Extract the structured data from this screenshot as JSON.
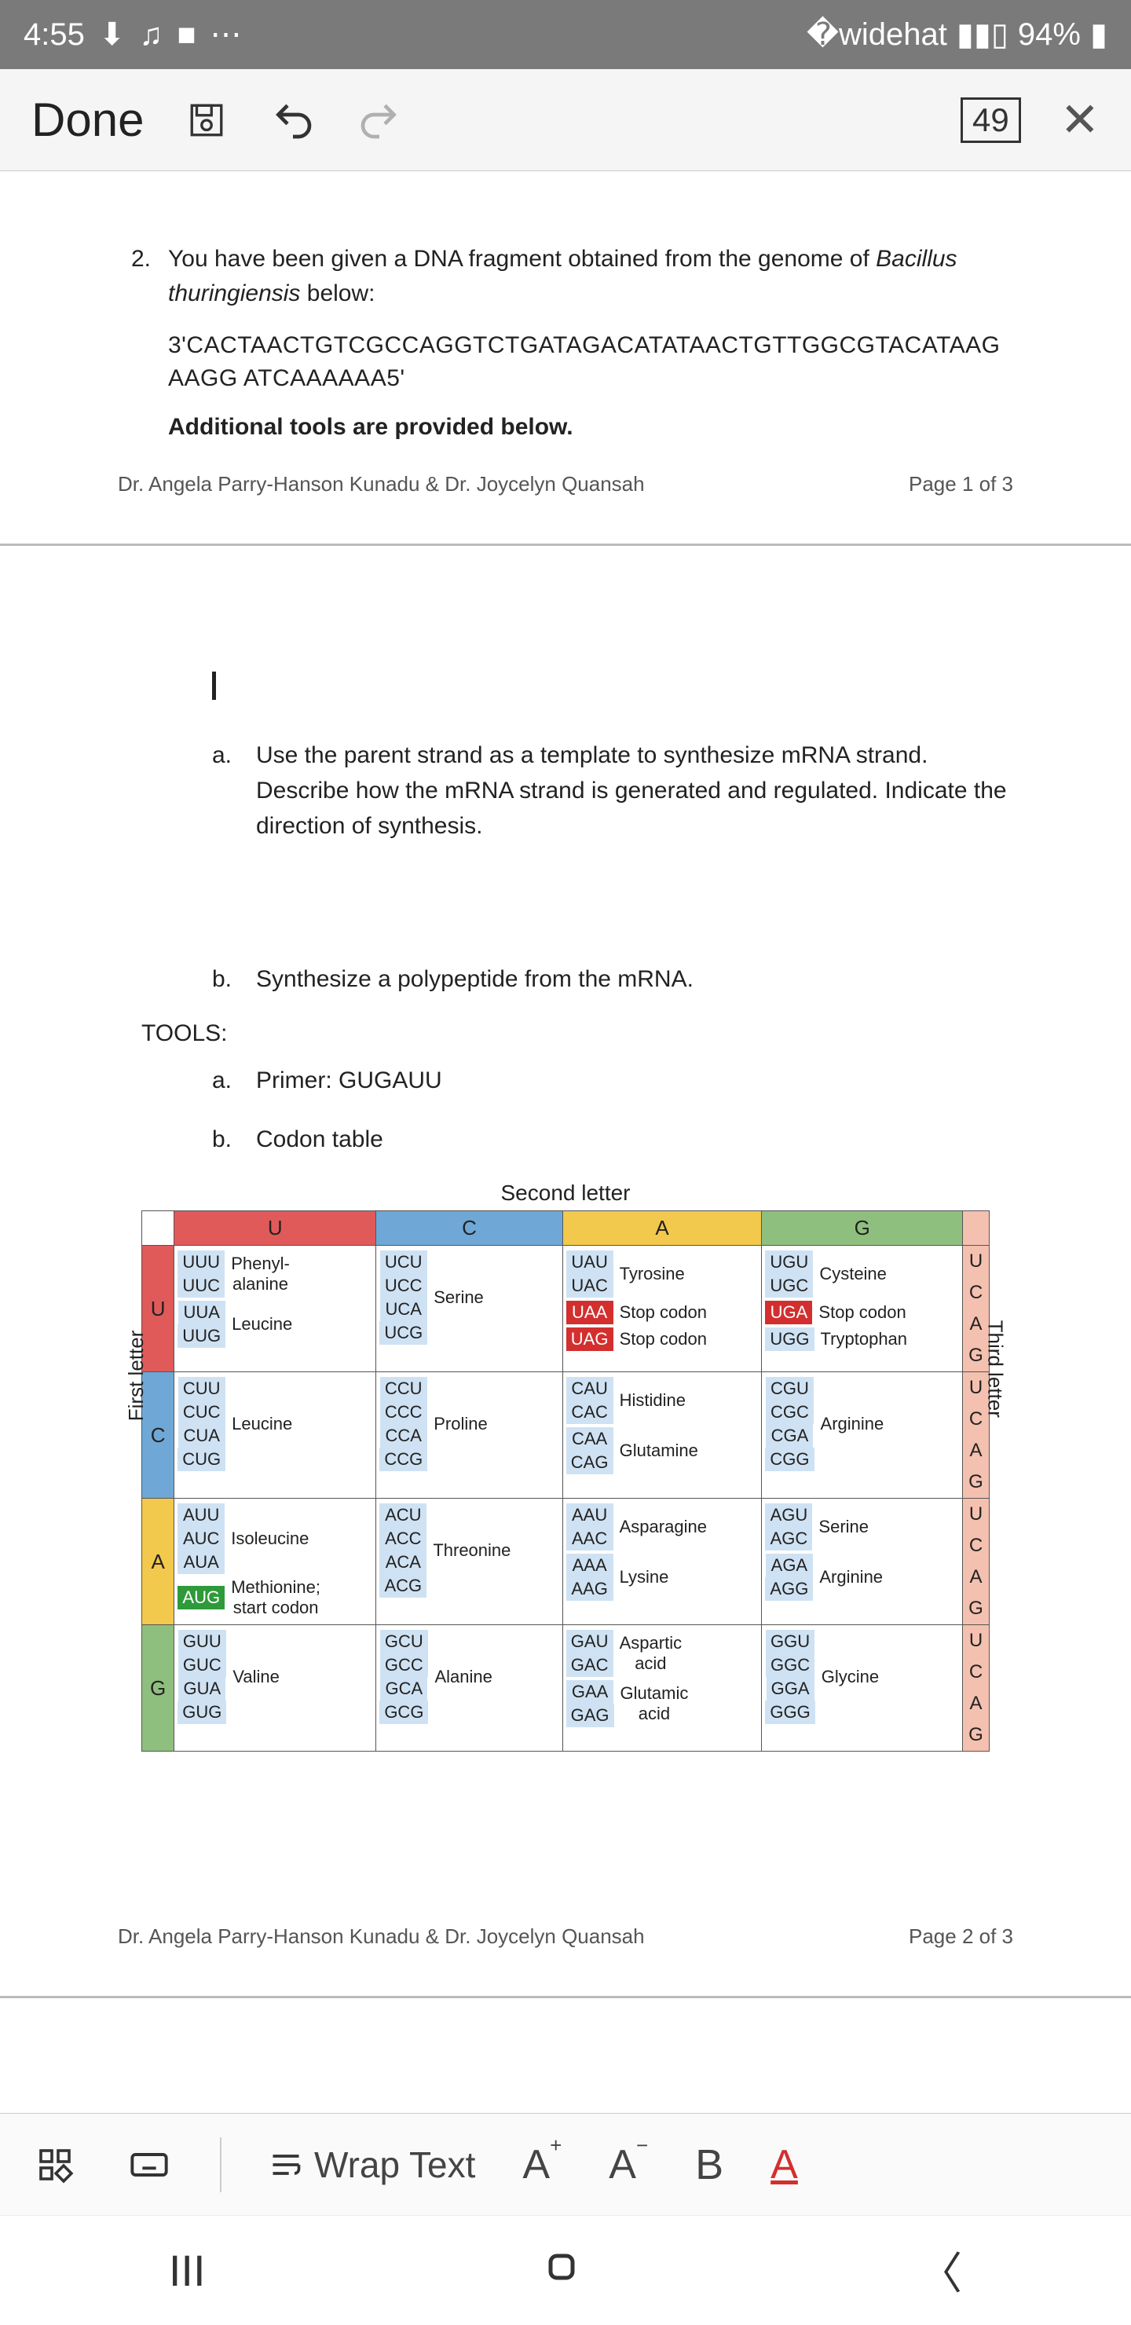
{
  "status": {
    "time": "4:55",
    "battery": "94%"
  },
  "toolbar": {
    "done": "Done",
    "pages": "49"
  },
  "doc": {
    "q2num": "2.",
    "q2text_a": "You have been given a DNA fragment obtained from the genome of ",
    "q2text_species": "Bacillus thuringiensis",
    "q2text_b": " below:",
    "dna": "3'CACTAACTGTCGCCAGGTCTGATAGACATATAACTGTTGGCGTACATAAGAAGG ATCAAAAAA5'",
    "tools_provided": "Additional tools are provided below.",
    "authors": "Dr. Angela Parry-Hanson Kunadu & Dr. Joycelyn Quansah",
    "page1": "Page 1 of 3",
    "page2": "Page 2 of 3",
    "qa_letter": "a.",
    "qa_text": "Use the parent strand as a template to synthesize mRNA strand. Describe how the mRNA strand is generated and regulated. Indicate the direction of synthesis.",
    "qb_letter": "b.",
    "qb_text": "Synthesize a polypeptide from the mRNA.",
    "tools_label": "TOOLS:",
    "tool_a_letter": "a.",
    "tool_a_text": "Primer: GUGAUU",
    "tool_b_letter": "b.",
    "tool_b_text": "Codon table"
  },
  "codon": {
    "second_letter": "Second letter",
    "first_letter": "First letter",
    "third_letter": "Third letter",
    "cols": [
      "U",
      "C",
      "A",
      "G"
    ],
    "third": [
      "U",
      "C",
      "A",
      "G"
    ],
    "rows": [
      {
        "first": "U",
        "cells": [
          [
            {
              "c": [
                "UUU",
                "UUC"
              ],
              "a": "Phenyl-\nalanine",
              "m": "box"
            },
            {
              "c": [
                "UUA",
                "UUG"
              ],
              "a": "Leucine",
              "m": "box"
            }
          ],
          [
            {
              "c": [
                "UCU",
                "UCC",
                "UCA",
                "UCG"
              ],
              "a": "Serine",
              "m": "box"
            }
          ],
          [
            {
              "c": [
                "UAU",
                "UAC"
              ],
              "a": "Tyrosine",
              "m": "box"
            },
            {
              "c": [
                "UAA"
              ],
              "a": "Stop codon",
              "m": "stop"
            },
            {
              "c": [
                "UAG"
              ],
              "a": "Stop codon",
              "m": "stop"
            }
          ],
          [
            {
              "c": [
                "UGU",
                "UGC"
              ],
              "a": "Cysteine",
              "m": "box"
            },
            {
              "c": [
                "UGA"
              ],
              "a": "Stop codon",
              "m": "stop"
            },
            {
              "c": [
                "UGG"
              ],
              "a": "Tryptophan",
              "m": "box"
            }
          ]
        ]
      },
      {
        "first": "C",
        "cells": [
          [
            {
              "c": [
                "CUU",
                "CUC",
                "CUA",
                "CUG"
              ],
              "a": "Leucine",
              "m": "box"
            }
          ],
          [
            {
              "c": [
                "CCU",
                "CCC",
                "CCA",
                "CCG"
              ],
              "a": "Proline",
              "m": "box"
            }
          ],
          [
            {
              "c": [
                "CAU",
                "CAC"
              ],
              "a": "Histidine",
              "m": "box"
            },
            {
              "c": [
                "CAA",
                "CAG"
              ],
              "a": "Glutamine",
              "m": "box"
            }
          ],
          [
            {
              "c": [
                "CGU",
                "CGC",
                "CGA",
                "CGG"
              ],
              "a": "Arginine",
              "m": "box"
            }
          ]
        ]
      },
      {
        "first": "A",
        "cells": [
          [
            {
              "c": [
                "AUU",
                "AUC",
                "AUA"
              ],
              "a": "Isoleucine",
              "m": "box"
            },
            {
              "c": [
                "AUG"
              ],
              "a": "Methionine;\nstart codon",
              "m": "start"
            }
          ],
          [
            {
              "c": [
                "ACU",
                "ACC",
                "ACA",
                "ACG"
              ],
              "a": "Threonine",
              "m": "box"
            }
          ],
          [
            {
              "c": [
                "AAU",
                "AAC"
              ],
              "a": "Asparagine",
              "m": "box"
            },
            {
              "c": [
                "AAA",
                "AAG"
              ],
              "a": "Lysine",
              "m": "box"
            }
          ],
          [
            {
              "c": [
                "AGU",
                "AGC"
              ],
              "a": "Serine",
              "m": "box"
            },
            {
              "c": [
                "AGA",
                "AGG"
              ],
              "a": "Arginine",
              "m": "box"
            }
          ]
        ]
      },
      {
        "first": "G",
        "cells": [
          [
            {
              "c": [
                "GUU",
                "GUC",
                "GUA",
                "GUG"
              ],
              "a": "Valine",
              "m": "box"
            }
          ],
          [
            {
              "c": [
                "GCU",
                "GCC",
                "GCA",
                "GCG"
              ],
              "a": "Alanine",
              "m": "box"
            }
          ],
          [
            {
              "c": [
                "GAU",
                "GAC"
              ],
              "a": "Aspartic\nacid",
              "m": "box"
            },
            {
              "c": [
                "GAA",
                "GAG"
              ],
              "a": "Glutamic\nacid",
              "m": "box"
            }
          ],
          [
            {
              "c": [
                "GGU",
                "GGC",
                "GGA",
                "GGG"
              ],
              "a": "Glycine",
              "m": "box"
            }
          ]
        ]
      }
    ]
  },
  "bottombar": {
    "wrap": "Wrap Text"
  }
}
